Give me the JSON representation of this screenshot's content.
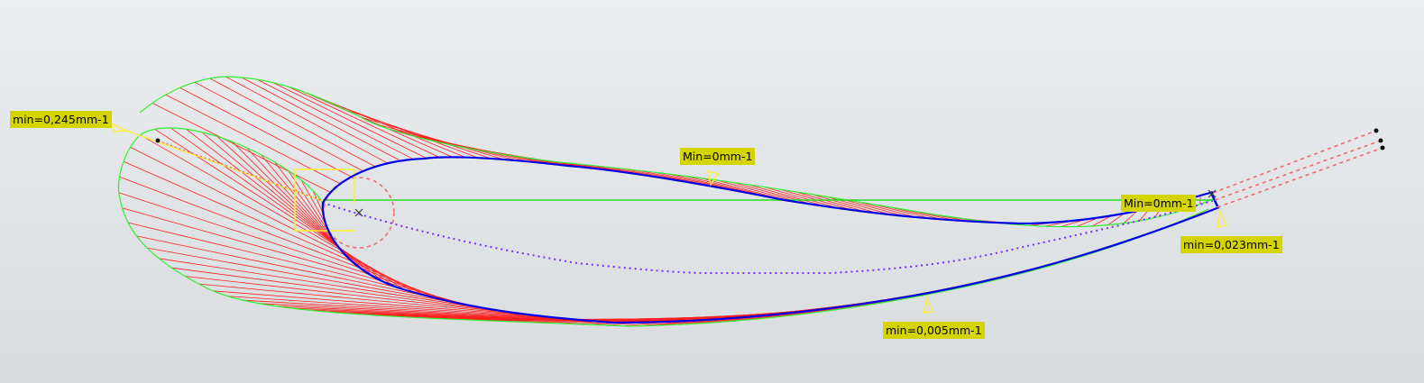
{
  "viewport": {
    "background_top": "#eceef0",
    "background_bottom": "#d8dcdf"
  },
  "colors": {
    "profile": "#0000e6",
    "envelope": "#33ee33",
    "comb": "#ff2020",
    "camber_line": "#7a2cff",
    "chord_line": "#22dd22",
    "circle": "#f06a6a",
    "frame": "#ffee33",
    "label_bg": "#d4d400"
  },
  "annotations": {
    "leading_edge_min": "min=0,245mm-1",
    "top_min": "Min=0mm-1",
    "trailing_edge_min": "Min=0mm-1",
    "trailing_edge_lower_min": "min=0,023mm-1",
    "bottom_min": "min=0,005mm-1"
  },
  "icons": {
    "center_marker": "cross-marker-icon",
    "min_marker": "triangle-marker-icon"
  }
}
